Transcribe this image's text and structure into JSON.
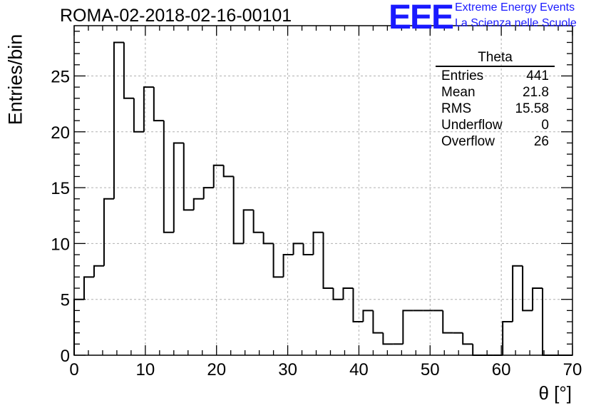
{
  "header": {
    "title": "ROMA-02-2018-02-16-00101",
    "logo": "EEE",
    "logo_line1": "Extreme Energy Events",
    "logo_line2": "La Scienza nelle Scuole"
  },
  "stats_box": {
    "title": "Theta",
    "rows": [
      {
        "label": "Entries",
        "value": "441"
      },
      {
        "label": "Mean",
        "value": "21.8"
      },
      {
        "label": "RMS",
        "value": "15.58"
      },
      {
        "label": "Underflow",
        "value": "0"
      },
      {
        "label": "Overflow",
        "value": "26"
      }
    ]
  },
  "colors": {
    "logo": "#1a1aff",
    "line": "#000000",
    "grid": "#b0b0b0"
  },
  "chart_data": {
    "type": "bar",
    "style": "step-histogram",
    "xlabel": "θ [°]",
    "ylabel": "Entries/bin",
    "xlim": [
      0,
      70
    ],
    "ylim": [
      0,
      29.5
    ],
    "bin_width": 1.4,
    "x_ticks": [
      0,
      10,
      20,
      30,
      40,
      50,
      60,
      70
    ],
    "y_ticks": [
      0,
      5,
      10,
      15,
      20,
      25
    ],
    "grid": true,
    "values": [
      5,
      7,
      8,
      14,
      28,
      23,
      20,
      24,
      21,
      11,
      19,
      13,
      14,
      15,
      17,
      16,
      10,
      13,
      11,
      10,
      7,
      9,
      10,
      9,
      11,
      6,
      5,
      6,
      3,
      4,
      2,
      1,
      1,
      4,
      4,
      4,
      4,
      2,
      2,
      1,
      0,
      0,
      0,
      3,
      8,
      4,
      6,
      0,
      0,
      0
    ]
  }
}
